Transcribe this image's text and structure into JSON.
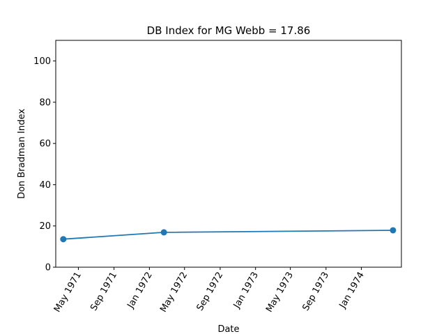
{
  "chart_data": {
    "type": "line",
    "title": "DB Index for MG Webb = 17.86",
    "xlabel": "Date",
    "ylabel": "Don Bradman Index",
    "x_range": [
      "1971-02-12",
      "1974-05-19"
    ],
    "ylim": [
      0,
      110
    ],
    "yticks": [
      0,
      20,
      40,
      60,
      80,
      100
    ],
    "xticks": [
      {
        "date": "1971-05-01",
        "label": "May 1971"
      },
      {
        "date": "1971-09-01",
        "label": "Sep 1971"
      },
      {
        "date": "1972-01-01",
        "label": "Jan 1972"
      },
      {
        "date": "1972-05-01",
        "label": "May 1972"
      },
      {
        "date": "1972-09-01",
        "label": "Sep 1972"
      },
      {
        "date": "1973-01-01",
        "label": "Jan 1973"
      },
      {
        "date": "1973-05-01",
        "label": "May 1973"
      },
      {
        "date": "1973-09-01",
        "label": "Sep 1973"
      },
      {
        "date": "1974-01-01",
        "label": "Jan 1974"
      }
    ],
    "grid": false,
    "series": [
      {
        "color": "#1f77b4",
        "points": [
          {
            "x": "1971-03-10",
            "y": 13.6
          },
          {
            "x": "1972-02-20",
            "y": 16.9
          },
          {
            "x": "1974-04-20",
            "y": 17.9
          }
        ]
      }
    ]
  }
}
